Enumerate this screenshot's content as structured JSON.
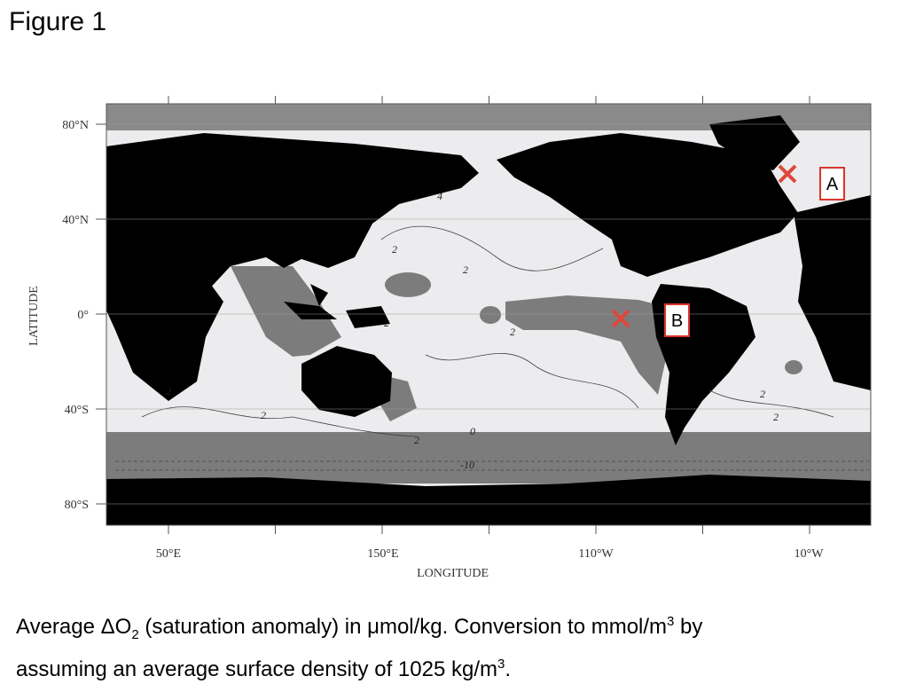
{
  "header": {
    "title": "Figure 1"
  },
  "map": {
    "lat_labels": [
      "80°N",
      "40°N",
      "0°",
      "40°S",
      "80°S"
    ],
    "lon_labels": [
      "50°E",
      "150°E",
      "110°W",
      "10°W"
    ],
    "x_axis_label": "LONGITUDE",
    "y_axis_label": "LATITUDE",
    "contour_labels": [
      "4",
      "2",
      "2",
      "2",
      "2",
      "2",
      "2",
      "0",
      "-10",
      "2",
      "2",
      "2"
    ],
    "markers": [
      {
        "label": "A"
      },
      {
        "label": "B"
      }
    ]
  },
  "caption": {
    "parts": [
      "Average ΔO",
      "2",
      " (saturation anomaly) in μmol/kg. Conversion to mmol/m",
      "3",
      " by",
      "assuming an average surface density of 1025 kg/m",
      "3",
      "."
    ]
  }
}
